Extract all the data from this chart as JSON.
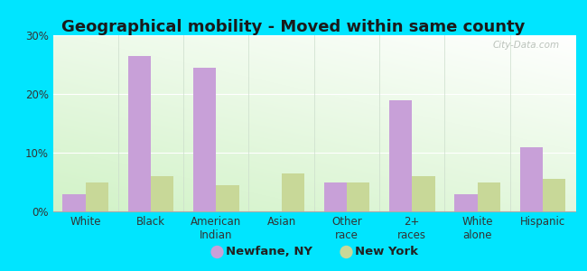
{
  "title": "Geographical mobility - Moved within same county",
  "categories": [
    "White",
    "Black",
    "American\nIndian",
    "Asian",
    "Other\nrace",
    "2+\nraces",
    "White\nalone",
    "Hispanic"
  ],
  "newfane_values": [
    3.0,
    26.5,
    24.5,
    0.0,
    5.0,
    19.0,
    3.0,
    11.0
  ],
  "newyork_values": [
    5.0,
    6.0,
    4.5,
    6.5,
    5.0,
    6.0,
    5.0,
    5.5
  ],
  "newfane_color": "#c8a0d8",
  "newyork_color": "#c8d898",
  "ylim": [
    0,
    30
  ],
  "yticks": [
    0,
    10,
    20,
    30
  ],
  "ytick_labels": [
    "0%",
    "10%",
    "20%",
    "30%"
  ],
  "outer_background": "#00e5ff",
  "legend_newfane": "Newfane, NY",
  "legend_newyork": "New York",
  "watermark": "City-Data.com",
  "bar_width": 0.35,
  "title_fontsize": 13,
  "tick_fontsize": 8.5,
  "legend_fontsize": 9.5
}
